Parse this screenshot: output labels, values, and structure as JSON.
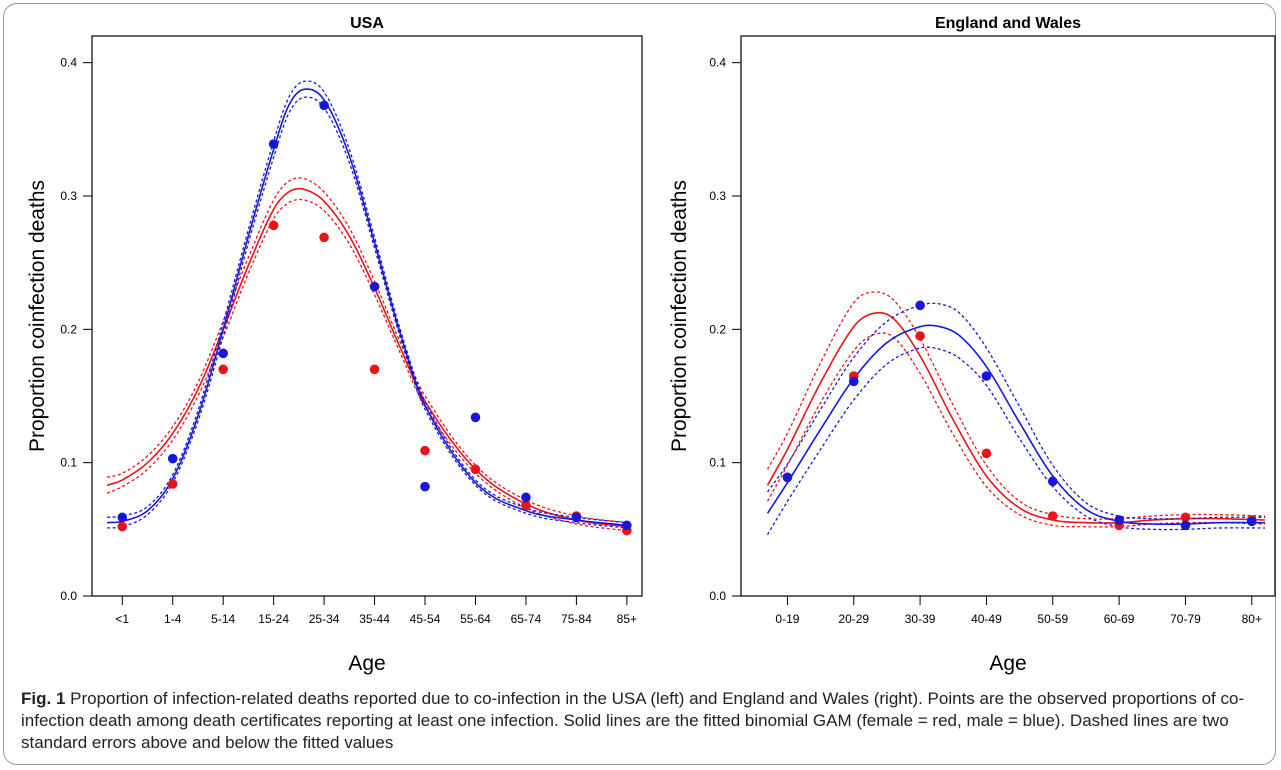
{
  "colors": {
    "female": "#e8141a",
    "male": "#1518d8",
    "axis": "#000000"
  },
  "caption": {
    "label": "Fig. 1",
    "text": "Proportion of infection-related deaths reported due to co-infection in the USA (left) and England and Wales (right). Points are the observed proportions of co-infection death among death certificates reporting at least one infection. Solid lines are the fitted binomial GAM (female = red, male = blue). Dashed lines are two standard errors above and below the fitted values"
  },
  "chart_data": [
    {
      "type": "scatter",
      "title": "USA",
      "xlabel": "Age",
      "ylabel": "Proportion coinfection deaths",
      "categories": [
        "<1",
        "1-4",
        "5-14",
        "15-24",
        "25-34",
        "35-44",
        "45-54",
        "55-64",
        "65-74",
        "75-84",
        "85+"
      ],
      "ylim": [
        0,
        0.42
      ],
      "yticks": [
        0.0,
        0.1,
        0.2,
        0.3,
        0.4
      ],
      "ytick_labels": [
        "0.0",
        "0.1",
        "0.2",
        "0.3",
        "0.4"
      ],
      "grid": false,
      "series": [
        {
          "key": "female",
          "points": [
            0.052,
            0.084,
            0.17,
            0.278,
            0.269,
            0.17,
            0.109,
            0.095,
            0.068,
            0.06,
            0.049
          ],
          "fit_x": [
            -0.3,
            0,
            0.5,
            1,
            1.5,
            2,
            2.5,
            3,
            3.3,
            3.6,
            4,
            4.5,
            5,
            5.5,
            6,
            7,
            8,
            9,
            10
          ],
          "fit_y": [
            0.083,
            0.087,
            0.1,
            0.122,
            0.155,
            0.2,
            0.248,
            0.29,
            0.303,
            0.305,
            0.296,
            0.27,
            0.231,
            0.187,
            0.146,
            0.095,
            0.069,
            0.057,
            0.052
          ],
          "fit_se": [
            0.006,
            0.005,
            0.005,
            0.005,
            0.005,
            0.006,
            0.006,
            0.007,
            0.008,
            0.008,
            0.007,
            0.006,
            0.005,
            0.004,
            0.004,
            0.003,
            0.003,
            0.003,
            0.003
          ]
        },
        {
          "key": "male",
          "points": [
            0.059,
            0.103,
            0.182,
            0.339,
            0.368,
            0.232,
            0.082,
            0.134,
            0.074,
            0.059,
            0.053
          ],
          "fit_x": [
            -0.3,
            0,
            0.5,
            1,
            1.5,
            2,
            2.5,
            3,
            3.3,
            3.6,
            4,
            4.5,
            5,
            5.5,
            6,
            7,
            8,
            9,
            10
          ],
          "fit_y": [
            0.055,
            0.056,
            0.064,
            0.088,
            0.135,
            0.2,
            0.27,
            0.335,
            0.368,
            0.38,
            0.372,
            0.33,
            0.265,
            0.198,
            0.143,
            0.085,
            0.064,
            0.057,
            0.053
          ],
          "fit_se": [
            0.004,
            0.004,
            0.003,
            0.003,
            0.004,
            0.005,
            0.005,
            0.006,
            0.006,
            0.006,
            0.006,
            0.005,
            0.004,
            0.003,
            0.003,
            0.002,
            0.002,
            0.002,
            0.002
          ]
        }
      ]
    },
    {
      "type": "scatter",
      "title": "England and Wales",
      "xlabel": "Age",
      "ylabel": "Proportion coinfection deaths",
      "categories": [
        "0-19",
        "20-29",
        "30-39",
        "40-49",
        "50-59",
        "60-69",
        "70-79",
        "80+"
      ],
      "ylim": [
        0,
        0.42
      ],
      "yticks": [
        0.0,
        0.1,
        0.2,
        0.3,
        0.4
      ],
      "ytick_labels": [
        "0.0",
        "0.1",
        "0.2",
        "0.3",
        "0.4"
      ],
      "grid": false,
      "series": [
        {
          "key": "female",
          "points": [
            0.089,
            0.165,
            0.195,
            0.107,
            0.06,
            0.053,
            0.059,
            0.057
          ],
          "fit_x": [
            -0.3,
            0,
            0.5,
            1,
            1.3,
            1.6,
            2,
            2.5,
            3,
            3.5,
            4,
            4.5,
            5,
            5.5,
            6,
            6.5,
            7.2
          ],
          "fit_y": [
            0.083,
            0.11,
            0.16,
            0.202,
            0.212,
            0.208,
            0.18,
            0.132,
            0.09,
            0.066,
            0.057,
            0.055,
            0.055,
            0.057,
            0.058,
            0.058,
            0.057
          ],
          "fit_se": [
            0.012,
            0.012,
            0.015,
            0.018,
            0.016,
            0.014,
            0.013,
            0.011,
            0.008,
            0.005,
            0.004,
            0.003,
            0.003,
            0.003,
            0.003,
            0.003,
            0.003
          ]
        },
        {
          "key": "male",
          "points": [
            0.089,
            0.161,
            0.218,
            0.165,
            0.086,
            0.057,
            0.053,
            0.056
          ],
          "fit_x": [
            -0.3,
            0,
            0.5,
            1,
            1.5,
            2,
            2.3,
            2.6,
            3,
            3.5,
            4,
            4.5,
            5,
            5.5,
            6,
            6.5,
            7.2
          ],
          "fit_y": [
            0.062,
            0.085,
            0.125,
            0.163,
            0.19,
            0.202,
            0.202,
            0.195,
            0.172,
            0.13,
            0.09,
            0.065,
            0.056,
            0.054,
            0.054,
            0.055,
            0.055
          ],
          "fit_se": [
            0.016,
            0.014,
            0.015,
            0.016,
            0.016,
            0.016,
            0.017,
            0.017,
            0.014,
            0.012,
            0.008,
            0.005,
            0.004,
            0.004,
            0.004,
            0.004,
            0.004
          ]
        }
      ]
    }
  ]
}
